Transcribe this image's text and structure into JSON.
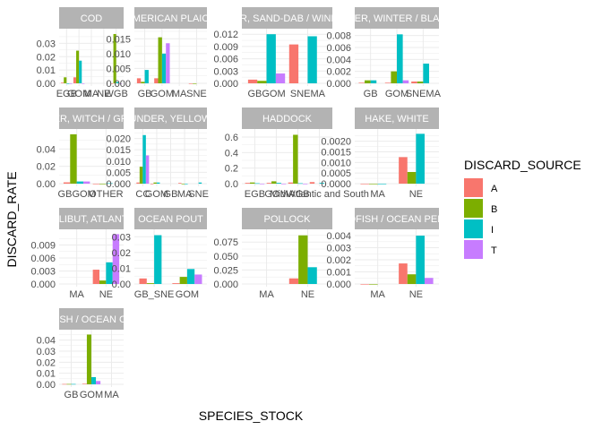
{
  "chart_data": {
    "type": "bar",
    "position": "dodge",
    "xlabel": "SPECIES_STOCK",
    "ylabel": "DISCARD_RATE",
    "grid": true,
    "legend": {
      "title": "DISCARD_SOURCE",
      "placement": "right",
      "entries": [
        {
          "name": "A",
          "color": "#F8766D"
        },
        {
          "name": "B",
          "color": "#7CAE00"
        },
        {
          "name": "I",
          "color": "#00BFC4"
        },
        {
          "name": "T",
          "color": "#C77CFF"
        }
      ]
    },
    "sources": [
      "A",
      "B",
      "I",
      "T"
    ],
    "panels": [
      {
        "title": "COD",
        "categories": [
          "EGB",
          "GOM",
          "MA",
          "NE",
          "WGB"
        ],
        "ylim": [
          0,
          0.039
        ],
        "yticks": [
          0,
          0.01,
          0.02,
          0.03
        ],
        "ytick_labels": [
          "0.00",
          "0.01",
          "0.02",
          "0.03"
        ],
        "values": {
          "A": [
            0.0005,
            0.0045,
            null,
            null,
            0.0
          ],
          "B": [
            0.0045,
            0.0245,
            null,
            null,
            0.037
          ],
          "I": [
            0.0,
            0.017,
            null,
            null,
            0.001
          ],
          "T": [
            0.0,
            0.0,
            null,
            null,
            0.0
          ]
        }
      },
      {
        "title": "AMERICAN PLAICE",
        "categories": [
          "GB",
          "GOM",
          "MA",
          "SNE"
        ],
        "ylim": [
          0,
          0.0175
        ],
        "yticks": [
          0,
          0.005,
          0.01,
          0.015
        ],
        "ytick_labels": [
          "0.000",
          "0.005",
          "0.010",
          "0.015"
        ],
        "values": {
          "A": [
            0.0017,
            0.0017,
            null,
            0.0
          ],
          "B": [
            0.0005,
            0.0155,
            null,
            0.0
          ],
          "I": [
            0.0045,
            0.01,
            null,
            null
          ],
          "T": [
            null,
            0.0135,
            null,
            null
          ]
        }
      },
      {
        "title": "FLOUNDER, SAND-DAB / WINDOWPANE",
        "categories": [
          "GBGOM",
          "SNEMA"
        ],
        "ylim": [
          0,
          0.0127
        ],
        "yticks": [
          0,
          0.003,
          0.006,
          0.009,
          0.012
        ],
        "ytick_labels": [
          "0.000",
          "0.003",
          "0.006",
          "0.009",
          "0.012"
        ],
        "values": {
          "A": [
            0.0009,
            0.0095
          ],
          "B": [
            0.0006,
            null
          ],
          "I": [
            0.012,
            0.0115
          ],
          "T": [
            0.0024,
            null
          ]
        }
      },
      {
        "title": "FLOUNDER, WINTER / BLACKBACK",
        "categories": [
          "GB",
          "GOM",
          "SNEMA"
        ],
        "ylim": [
          0,
          0.0087
        ],
        "yticks": [
          0,
          0.002,
          0.004,
          0.006,
          0.008
        ],
        "ytick_labels": [
          "0.000",
          "0.002",
          "0.004",
          "0.006",
          "0.008"
        ],
        "values": {
          "A": [
            0.0001,
            0.0001,
            0.0003
          ],
          "B": [
            0.0005,
            0.002,
            0.0003
          ],
          "I": [
            0.0005,
            0.0082,
            0.0033
          ],
          "T": [
            null,
            0.0005,
            null
          ]
        }
      },
      {
        "title": "FLOUNDER, WITCH / GREY SOLE",
        "categories": [
          "GBGOM",
          "OTHER"
        ],
        "ylim": [
          0,
          0.06
        ],
        "yticks": [
          0,
          0.02,
          0.04
        ],
        "ytick_labels": [
          "0.00",
          "0.02",
          "0.04"
        ],
        "values": {
          "A": [
            0.0015,
            0.0
          ],
          "B": [
            0.057,
            0.0
          ],
          "I": [
            0.0025,
            0.0005
          ],
          "T": [
            0.0025,
            null
          ]
        }
      },
      {
        "title": "FLOUNDER, YELLOWTAIL",
        "categories": [
          "CC",
          "GOM",
          "GB",
          "MA",
          "SNE"
        ],
        "ylim": [
          0,
          0.023
        ],
        "yticks": [
          0,
          0.005,
          0.01,
          0.015,
          0.02
        ],
        "ytick_labels": [
          "0.000",
          "0.005",
          "0.010",
          "0.015",
          "0.020"
        ],
        "values": {
          "A": [
            0.0005,
            0.0,
            null,
            0.0003,
            null
          ],
          "B": [
            0.0075,
            0.0005,
            null,
            0.0,
            null
          ],
          "I": [
            0.0215,
            0.0005,
            null,
            0.0,
            0.0005
          ],
          "T": [
            0.0125,
            null,
            null,
            null,
            null
          ]
        }
      },
      {
        "title": "HADDOCK",
        "categories": [
          "EGB",
          "GOM",
          "WGB",
          "Mid-Atlantic and South"
        ],
        "ylim": [
          0,
          0.67
        ],
        "yticks": [
          0,
          0.2,
          0.4,
          0.6
        ],
        "ytick_labels": [
          "0.0",
          "0.2",
          "0.4",
          "0.6"
        ],
        "values": {
          "A": [
            0.01,
            0.01,
            0.015,
            0.02
          ],
          "B": [
            0.015,
            0.03,
            0.63,
            null
          ],
          "I": [
            0.005,
            0.01,
            0.005,
            0.01
          ],
          "T": [
            0.0,
            0.0,
            0.0,
            null
          ]
        }
      },
      {
        "title": "HAKE, WHITE",
        "categories": [
          "MA",
          "NE"
        ],
        "ylim": [
          0,
          0.00245
        ],
        "yticks": [
          0,
          0.0005,
          0.001,
          0.0015,
          0.002
        ],
        "ytick_labels": [
          "0.0000",
          "0.0005",
          "0.0010",
          "0.0015",
          "0.0020"
        ],
        "values": {
          "A": [
            0.0,
            0.00125
          ],
          "B": [
            0.0,
            0.00055
          ],
          "I": [
            0.0,
            0.00235
          ],
          "T": [
            null,
            null
          ]
        }
      },
      {
        "title": "HALIBUT, ATLANTIC",
        "categories": [
          "MA",
          "NE"
        ],
        "ylim": [
          0,
          0.012
        ],
        "yticks": [
          0,
          0.003,
          0.006,
          0.009
        ],
        "ytick_labels": [
          "0.000",
          "0.003",
          "0.006",
          "0.009"
        ],
        "values": {
          "A": [
            null,
            0.0033
          ],
          "B": [
            null,
            0.0008
          ],
          "I": [
            null,
            0.005
          ],
          "T": [
            null,
            0.0115
          ]
        }
      },
      {
        "title": "OCEAN POUT",
        "categories": [
          "GB_SNE",
          "GOM"
        ],
        "ylim": [
          0,
          0.033
        ],
        "yticks": [
          0,
          0.01,
          0.02,
          0.03
        ],
        "ytick_labels": [
          "0.00",
          "0.01",
          "0.02",
          "0.03"
        ],
        "values": {
          "A": [
            0.0035,
            0.0005
          ],
          "B": [
            0.0005,
            0.0045
          ],
          "I": [
            0.031,
            0.0095
          ],
          "T": [
            null,
            0.006
          ]
        }
      },
      {
        "title": "POLLOCK",
        "categories": [
          "MA",
          "NE"
        ],
        "ylim": [
          0,
          0.093
        ],
        "yticks": [
          0,
          0.025,
          0.05,
          0.075
        ],
        "ytick_labels": [
          "0.000",
          "0.025",
          "0.050",
          "0.075"
        ],
        "values": {
          "A": [
            null,
            0.01
          ],
          "B": [
            null,
            0.087
          ],
          "I": [
            null,
            0.03
          ],
          "T": [
            null,
            null
          ]
        }
      },
      {
        "title": "REDFISH / OCEAN PERCH",
        "categories": [
          "MA",
          "NE"
        ],
        "ylim": [
          0,
          0.0043
        ],
        "yticks": [
          0,
          0.001,
          0.002,
          0.003,
          0.004
        ],
        "ytick_labels": [
          "0.000",
          "0.001",
          "0.002",
          "0.003",
          "0.004"
        ],
        "values": {
          "A": [
            0.0,
            0.0017
          ],
          "B": [
            0.0,
            0.0008
          ],
          "I": [
            null,
            0.004
          ],
          "T": [
            null,
            0.0005
          ]
        }
      },
      {
        "title": "WOLFFISH / OCEAN CATFISH",
        "categories": [
          "GB",
          "GOM",
          "MA"
        ],
        "ylim": [
          0,
          0.047
        ],
        "yticks": [
          0,
          0.01,
          0.02,
          0.03,
          0.04
        ],
        "ytick_labels": [
          "0.00",
          "0.01",
          "0.02",
          "0.03",
          "0.04"
        ],
        "values": {
          "A": [
            0.0003,
            0.0005,
            null
          ],
          "B": [
            0.0003,
            0.045,
            null
          ],
          "I": [
            0.0003,
            0.0065,
            null
          ],
          "T": [
            null,
            0.003,
            null
          ]
        }
      }
    ]
  }
}
